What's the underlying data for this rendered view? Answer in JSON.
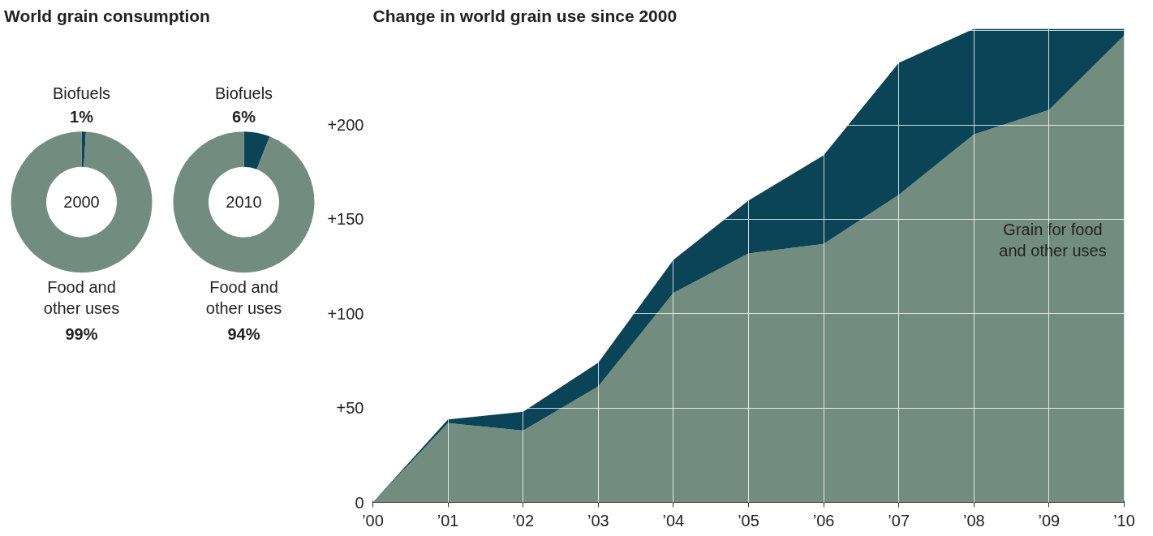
{
  "chart_data": [
    {
      "type": "donut",
      "title": "World grain consumption",
      "categories": [
        "Biofuels",
        "Food and other uses"
      ],
      "values": [
        1,
        99
      ],
      "colors": [
        "#0b4456",
        "#728c7f"
      ],
      "value_labels": [
        "1%",
        "99%"
      ],
      "annotations": [
        "2000"
      ]
    },
    {
      "type": "donut",
      "categories": [
        "Biofuels",
        "Food and other uses"
      ],
      "values": [
        6,
        94
      ],
      "colors": [
        "#0b4456",
        "#728c7f"
      ],
      "value_labels": [
        "6%",
        "94%"
      ],
      "annotations": [
        "2010"
      ]
    },
    {
      "type": "area",
      "title": "Change in world grain use since 2000",
      "stacked": true,
      "x": [
        2000,
        2001,
        2002,
        2003,
        2004,
        2005,
        2006,
        2007,
        2008,
        2009,
        2010
      ],
      "series": [
        {
          "name": "Grain for food and other uses",
          "color": "#728c7f",
          "values": [
            0,
            42,
            38,
            61.5,
            111,
            132,
            137,
            163,
            195,
            208,
            247.5
          ]
        },
        {
          "color": "#0b4456",
          "values": [
            0,
            2,
            10,
            12.5,
            17.5,
            28,
            47,
            70,
            56,
            43,
            3.5
          ]
        }
      ],
      "xlim": [
        2000,
        2010
      ],
      "xticks": [
        {
          "value": 2000,
          "label": "’00"
        },
        {
          "value": 2001,
          "label": "’01"
        },
        {
          "value": 2002,
          "label": "’02"
        },
        {
          "value": 2003,
          "label": "’03"
        },
        {
          "value": 2004,
          "label": "’04"
        },
        {
          "value": 2005,
          "label": "’05"
        },
        {
          "value": 2006,
          "label": "’06"
        },
        {
          "value": 2007,
          "label": "’07"
        },
        {
          "value": 2008,
          "label": "’08"
        },
        {
          "value": 2009,
          "label": "’09"
        },
        {
          "value": 2010,
          "label": "’10"
        }
      ],
      "ylim": [
        0,
        251
      ],
      "yticks": [
        0,
        {
          "value": 50,
          "label": "+50"
        },
        {
          "value": 100,
          "label": "+100"
        },
        {
          "value": 150,
          "label": "+150"
        },
        {
          "value": 200,
          "label": "+200"
        },
        {
          "value": 250,
          "label": null
        }
      ],
      "grid": true
    }
  ]
}
